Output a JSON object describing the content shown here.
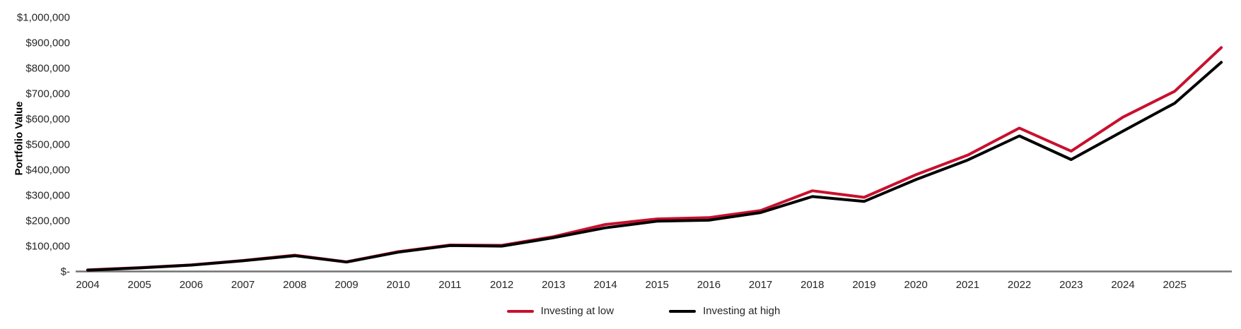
{
  "chart_data": {
    "type": "line",
    "title": "",
    "xlabel": "",
    "ylabel": "Portfolio Value",
    "ylim": [
      0,
      1000000
    ],
    "grid": false,
    "legend_position": "bottom",
    "y_ticks": [
      "$1,000,000",
      "$900,000",
      "$800,000",
      "$700,000",
      "$600,000",
      "$500,000",
      "$400,000",
      "$300,000",
      "$200,000",
      "$100,000",
      "$-"
    ],
    "x_ticks": [
      "2004",
      "2005",
      "2006",
      "2007",
      "2008",
      "2009",
      "2010",
      "2011",
      "2012",
      "2013",
      "2014",
      "2015",
      "2016",
      "2017",
      "2018",
      "2019",
      "2020",
      "2021",
      "2022",
      "2023",
      "2024",
      "2025"
    ],
    "x": [
      2004,
      2005,
      2006,
      2007,
      2008,
      2009,
      2010,
      2011,
      2012,
      2013,
      2014,
      2015,
      2016,
      2017,
      2018,
      2019,
      2020,
      2021,
      2022,
      2023,
      2024,
      2025,
      2025.9
    ],
    "series": [
      {
        "name": "Investing at low",
        "color": "#C8102E",
        "values": [
          6000,
          15000,
          26000,
          43000,
          64000,
          38000,
          78000,
          104000,
          103000,
          137000,
          185000,
          207000,
          212000,
          240000,
          318000,
          292000,
          381000,
          458000,
          565000,
          474000,
          608000,
          710000,
          882000
        ]
      },
      {
        "name": "Investing at high",
        "color": "#000000",
        "values": [
          5000,
          14000,
          25000,
          42000,
          62000,
          37000,
          76000,
          102000,
          100000,
          133000,
          172000,
          198000,
          202000,
          232000,
          295000,
          276000,
          362000,
          439000,
          534000,
          441000,
          553000,
          663000,
          824000
        ]
      }
    ]
  },
  "colors": {
    "axis_line": "#737373",
    "tick_text": "#262626",
    "series_low": "#C8102E",
    "series_high": "#000000"
  }
}
